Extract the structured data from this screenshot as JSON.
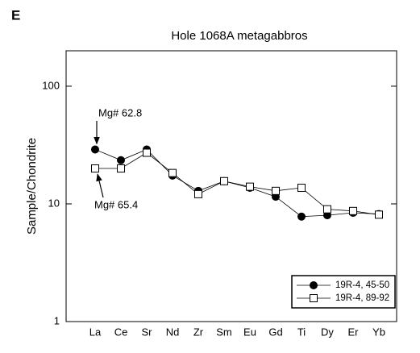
{
  "chart_data": {
    "type": "line",
    "panel_label": "E",
    "title": "Hole 1068A metagabbros",
    "y_label": "Sample/Chondrite",
    "categories": [
      "La",
      "Ce",
      "Sr",
      "Nd",
      "Zr",
      "Sm",
      "Eu",
      "Gd",
      "Ti",
      "Dy",
      "Er",
      "Yb"
    ],
    "series": [
      {
        "name": "19R-4, 45-50",
        "color": "#000000",
        "marker": "circle",
        "filled": true,
        "values": [
          29,
          23.5,
          29,
          17.4,
          12.9,
          15.6,
          13.7,
          11.5,
          7.8,
          8.0,
          8.4,
          8.2
        ]
      },
      {
        "name": "19R-4, 89-92",
        "color": "#000000",
        "marker": "square",
        "filled": false,
        "values": [
          20,
          20,
          27.2,
          18.3,
          12.1,
          15.6,
          14,
          12.9,
          13.7,
          9.0,
          8.7,
          8.1
        ]
      }
    ],
    "annotations": [
      "Mg# 62.8",
      "Mg# 65.4"
    ],
    "ylim": [
      1,
      200
    ],
    "yticks": [
      1,
      10,
      100
    ],
    "log_y": true,
    "legend": "lower right"
  }
}
